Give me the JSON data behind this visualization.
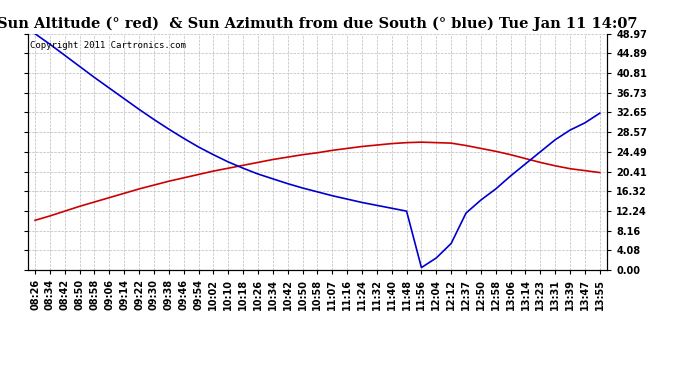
{
  "title": "Sun Altitude (° red)  & Sun Azimuth from due South (° blue) Tue Jan 11 14:07",
  "copyright_text": "Copyright 2011 Cartronics.com",
  "yticks": [
    0.0,
    4.08,
    8.16,
    12.24,
    16.32,
    20.41,
    24.49,
    28.57,
    32.65,
    36.73,
    40.81,
    44.89,
    48.97
  ],
  "ylim": [
    0.0,
    48.97
  ],
  "x_labels": [
    "08:26",
    "08:34",
    "08:42",
    "08:50",
    "08:58",
    "09:06",
    "09:14",
    "09:22",
    "09:30",
    "09:38",
    "09:46",
    "09:54",
    "10:02",
    "10:10",
    "10:18",
    "10:26",
    "10:34",
    "10:42",
    "10:50",
    "10:58",
    "11:07",
    "11:16",
    "11:24",
    "11:32",
    "11:40",
    "11:48",
    "11:56",
    "12:04",
    "12:12",
    "12:37",
    "12:50",
    "12:58",
    "13:06",
    "13:14",
    "13:23",
    "13:31",
    "13:39",
    "13:47",
    "13:55"
  ],
  "red_data": [
    10.3,
    11.2,
    12.2,
    13.2,
    14.1,
    15.0,
    15.9,
    16.8,
    17.6,
    18.4,
    19.1,
    19.8,
    20.5,
    21.1,
    21.7,
    22.3,
    22.9,
    23.4,
    23.9,
    24.3,
    24.8,
    25.2,
    25.6,
    25.9,
    26.2,
    26.4,
    26.5,
    26.4,
    26.3,
    25.8,
    25.2,
    24.6,
    23.9,
    23.1,
    22.3,
    21.6,
    21.0,
    20.6,
    20.2
  ],
  "blue_data": [
    48.97,
    46.8,
    44.5,
    42.2,
    39.9,
    37.7,
    35.5,
    33.3,
    31.2,
    29.2,
    27.3,
    25.5,
    23.9,
    22.4,
    21.1,
    19.9,
    18.9,
    17.9,
    17.0,
    16.2,
    15.4,
    14.7,
    14.0,
    13.4,
    12.8,
    12.2,
    0.5,
    2.5,
    5.5,
    11.8,
    14.5,
    16.8,
    19.5,
    22.0,
    24.5,
    27.0,
    29.0,
    30.5,
    32.5
  ],
  "line_color_red": "#cc0000",
  "line_color_blue": "#0000cc",
  "bg_color": "#ffffff",
  "grid_color": "#bbbbbb",
  "title_fontsize": 10.5,
  "tick_fontsize": 7,
  "copyright_fontsize": 6.5
}
